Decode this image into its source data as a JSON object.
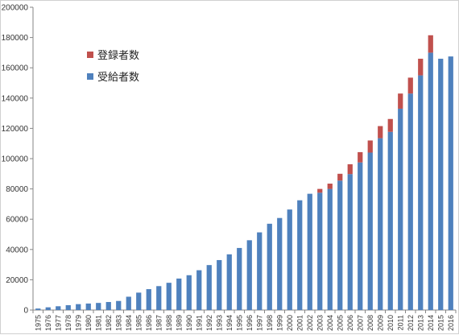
{
  "chart_data": {
    "type": "bar",
    "stacked": true,
    "categories": [
      "1975",
      "1976",
      "1977",
      "1978",
      "1979",
      "1980",
      "1981",
      "1982",
      "1983",
      "1984",
      "1985",
      "1986",
      "1987",
      "1988",
      "1989",
      "1990",
      "1991",
      "1992",
      "1993",
      "1994",
      "1995",
      "1996",
      "1997",
      "1998",
      "1999",
      "2000",
      "2001",
      "2002",
      "2003",
      "2004",
      "2005",
      "2006",
      "2007",
      "2008",
      "2009",
      "2010",
      "2011",
      "2012",
      "2013",
      "2014",
      "2015",
      "2016"
    ],
    "series": [
      {
        "name": "受給者数",
        "color": "#4f81bd",
        "values": [
          1000,
          1800,
          2500,
          3200,
          3900,
          4300,
          4700,
          5300,
          6000,
          8800,
          11500,
          13800,
          15800,
          18000,
          20800,
          23000,
          26300,
          29700,
          33000,
          36800,
          41000,
          46100,
          51300,
          57000,
          60800,
          66400,
          72500,
          76800,
          77500,
          80000,
          85500,
          89800,
          97500,
          104000,
          113500,
          117700,
          133000,
          143000,
          155000,
          170000,
          166000,
          167500
        ]
      },
      {
        "name": "登録者数",
        "color": "#c0504d",
        "values": [
          0,
          0,
          0,
          0,
          0,
          0,
          0,
          0,
          0,
          0,
          0,
          0,
          0,
          0,
          0,
          0,
          0,
          0,
          0,
          0,
          0,
          0,
          0,
          0,
          0,
          0,
          0,
          0,
          2500,
          3500,
          4500,
          6500,
          6800,
          8000,
          8000,
          8500,
          10000,
          10500,
          11000,
          11500,
          0,
          0
        ]
      }
    ],
    "ylim": [
      0,
      200000
    ],
    "yticks": [
      0,
      20000,
      40000,
      60000,
      80000,
      100000,
      120000,
      140000,
      160000,
      180000,
      200000
    ],
    "grid": false,
    "legend_position": "top-left"
  }
}
